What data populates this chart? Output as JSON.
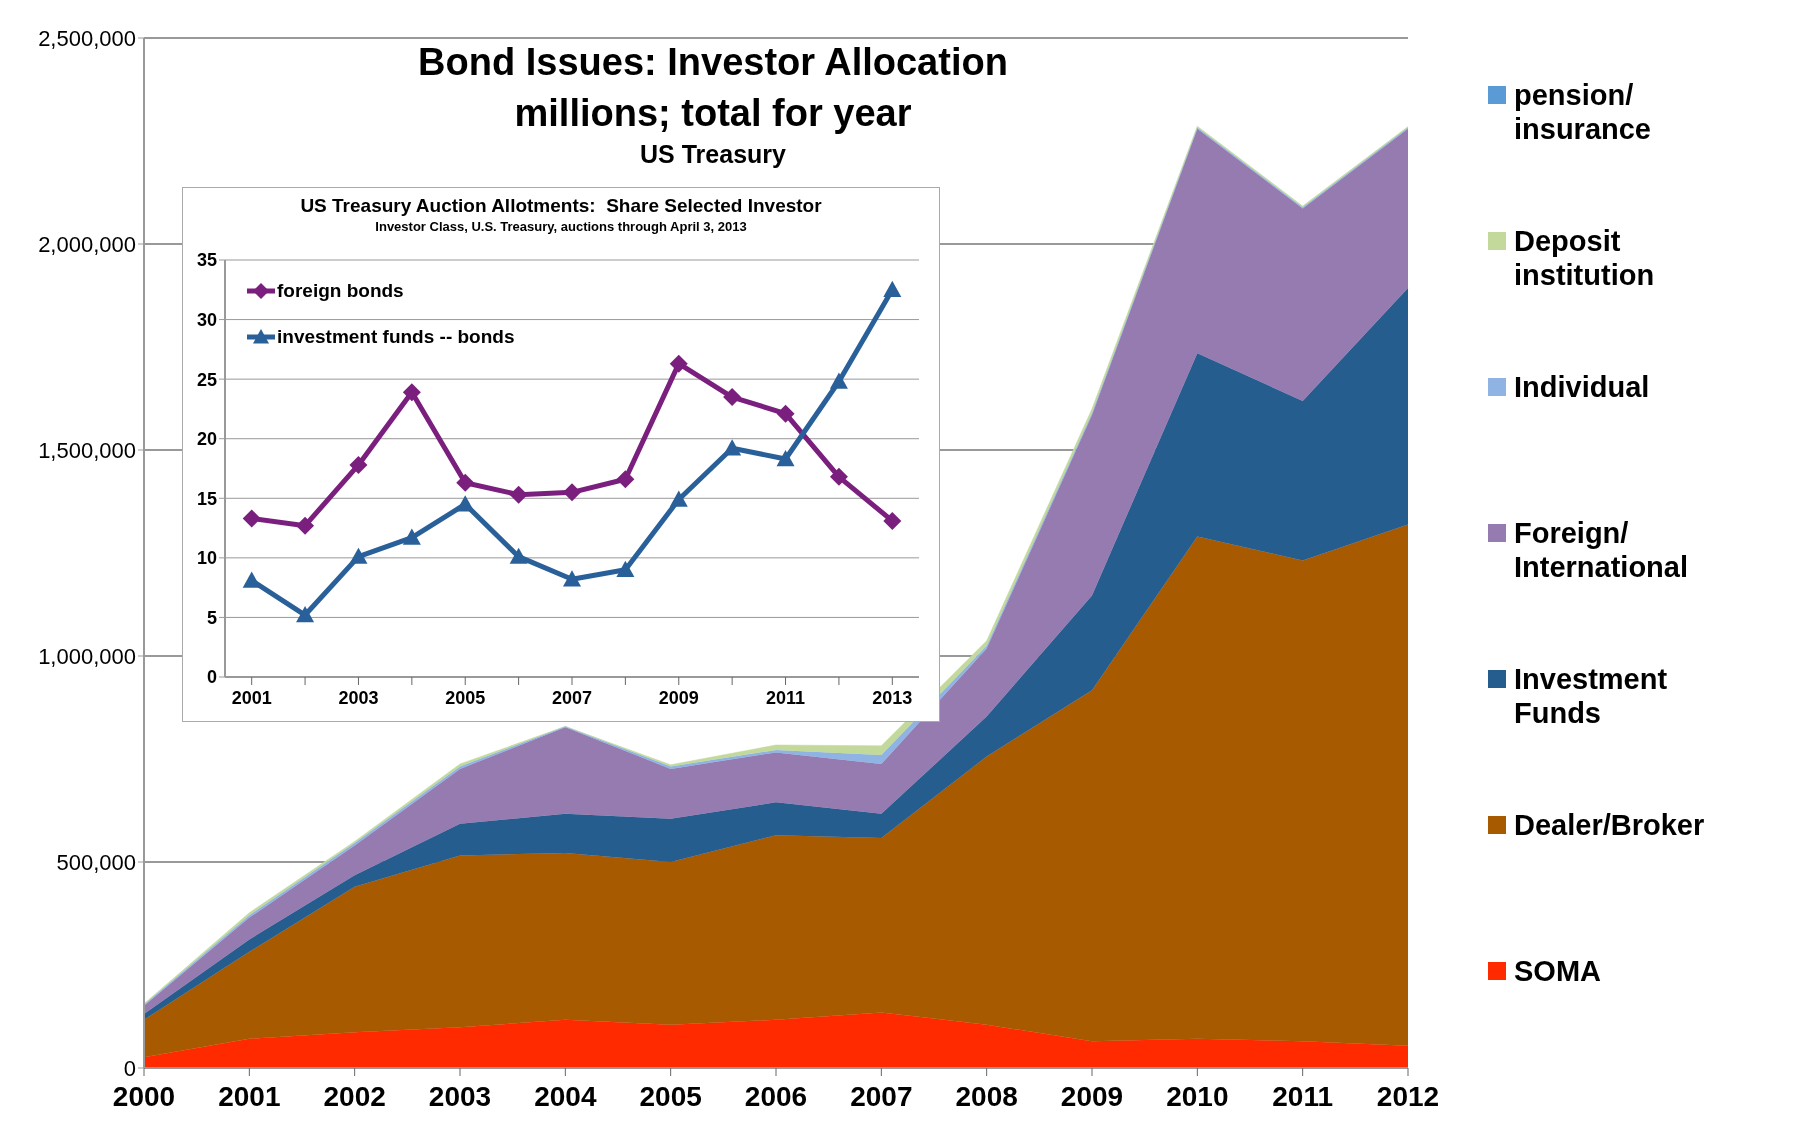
{
  "chart_data": [
    {
      "type": "area",
      "title": "Bond Issues: Investor Allocation",
      "subtitle": "millions; total for year",
      "annotations": [
        "US Treasury"
      ],
      "categories": [
        "2000",
        "2001",
        "2002",
        "2003",
        "2004",
        "2005",
        "2006",
        "2007",
        "2008",
        "2009",
        "2010",
        "2011",
        "2012"
      ],
      "stacked": true,
      "ylim": [
        0,
        2500000
      ],
      "yticks": [
        0,
        {
          "value": 500000,
          "label": "500,000"
        },
        {
          "value": 1000000,
          "label": "1,000,000"
        },
        {
          "value": 1500000,
          "label": "1,500,000"
        },
        {
          "value": 2000000,
          "label": "2,000,000"
        },
        {
          "value": 2500000,
          "label": "2,500,000"
        }
      ],
      "grid": "y",
      "legend": "right",
      "series": [
        {
          "name": "SOMA",
          "color": "#ff2a00",
          "values": [
            26000,
            71000,
            87000,
            99000,
            117000,
            105000,
            117000,
            135000,
            105000,
            65000,
            71000,
            65000,
            54000
          ]
        },
        {
          "name": "Dealer/Broker",
          "color": "#a85a00",
          "values": [
            91000,
            211000,
            353000,
            417000,
            405000,
            395000,
            448000,
            423000,
            651000,
            852000,
            1219000,
            1167000,
            1265000
          ]
        },
        {
          "name": "Investment Funds",
          "color": "#265d8f",
          "values": [
            14000,
            30000,
            28000,
            77000,
            95000,
            105000,
            80000,
            59000,
            97000,
            230000,
            445000,
            387000,
            574000
          ]
        },
        {
          "name": "Foreign/ International",
          "color": "#957bb0",
          "values": [
            20000,
            53000,
            72000,
            133000,
            210000,
            121000,
            121000,
            121000,
            165000,
            438000,
            545000,
            467000,
            387000
          ]
        },
        {
          "name": "Individual",
          "color": "#8fb4e3",
          "values": [
            3000,
            6000,
            6000,
            6000,
            2000,
            6000,
            6000,
            22000,
            7000,
            5000,
            3000,
            3000,
            3000
          ]
        },
        {
          "name": "Deposit institution",
          "color": "#c3d99b",
          "values": [
            2000,
            6000,
            4000,
            6000,
            0,
            4000,
            12000,
            22000,
            12000,
            10000,
            3000,
            3000,
            2000
          ]
        },
        {
          "name": "pension/ insurance",
          "color": "#5b9bd5",
          "values": [
            null,
            null,
            null,
            null,
            null,
            null,
            null,
            null,
            null,
            null,
            null,
            null,
            null
          ]
        }
      ]
    },
    {
      "type": "line",
      "title": "US Treasury Auction Allotments:  Share Selected Investor",
      "subtitle": "Investor Class, U.S. Treasury, auctions through April 3, 2013",
      "categories": [
        "2001",
        null,
        "2003",
        null,
        "2005",
        null,
        "2007",
        null,
        "2009",
        null,
        "2011",
        null,
        "2013"
      ],
      "ylim": [
        0,
        35
      ],
      "yticks": [
        0,
        5,
        10,
        15,
        20,
        25,
        30,
        35
      ],
      "grid": "y",
      "legend": "top left",
      "series": [
        {
          "name": "foreign bonds",
          "color": "#7b1f7f",
          "marker": "diamond",
          "values": [
            13.3,
            12.7,
            17.8,
            23.9,
            16.3,
            15.3,
            15.5,
            16.6,
            26.3,
            23.5,
            22.1,
            16.8,
            13.1
          ]
        },
        {
          "name": "investment funds -- bonds",
          "color": "#2a6099",
          "marker": "triangle",
          "values": [
            8.1,
            5.2,
            10.1,
            11.7,
            14.5,
            10.1,
            8.2,
            9.0,
            14.9,
            19.2,
            18.3,
            24.8,
            32.5
          ]
        }
      ]
    }
  ]
}
